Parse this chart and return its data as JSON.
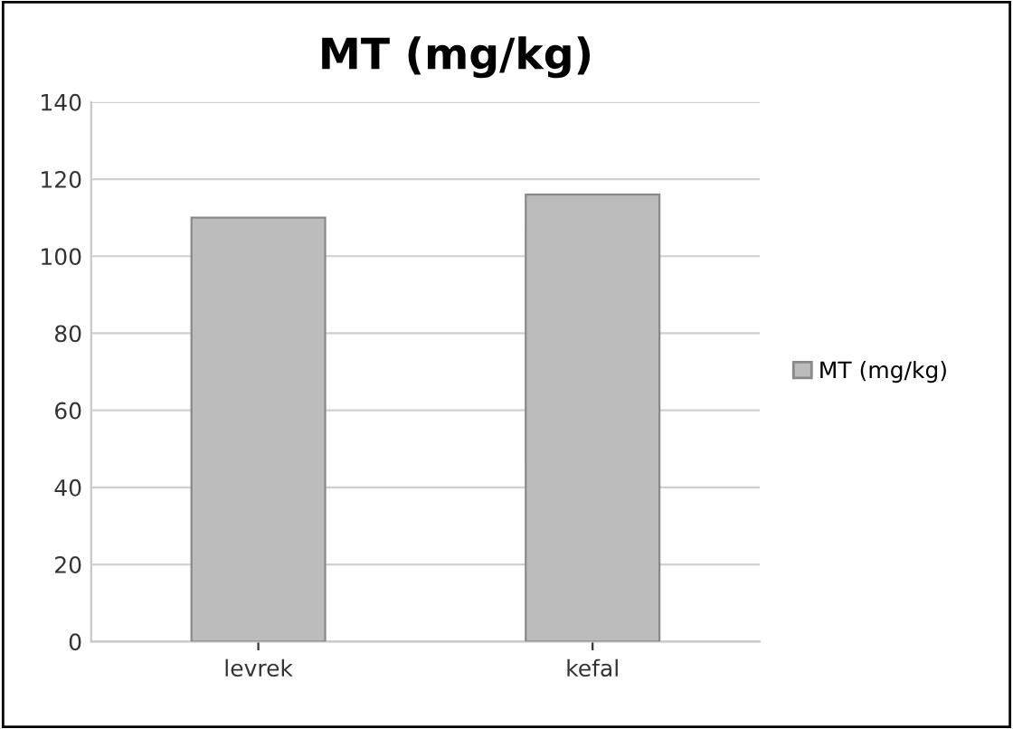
{
  "chart_data": {
    "type": "bar",
    "title": "MT (mg/kg)",
    "categories": [
      "levrek",
      "kefal"
    ],
    "series": [
      {
        "name": "MT (mg/kg)",
        "color": "#bcbcbc",
        "values": [
          110,
          116
        ]
      }
    ],
    "ylim": [
      0,
      140
    ],
    "yticks": [
      0,
      20,
      40,
      60,
      80,
      100,
      120,
      140
    ],
    "grid": "y",
    "legend": "right"
  }
}
